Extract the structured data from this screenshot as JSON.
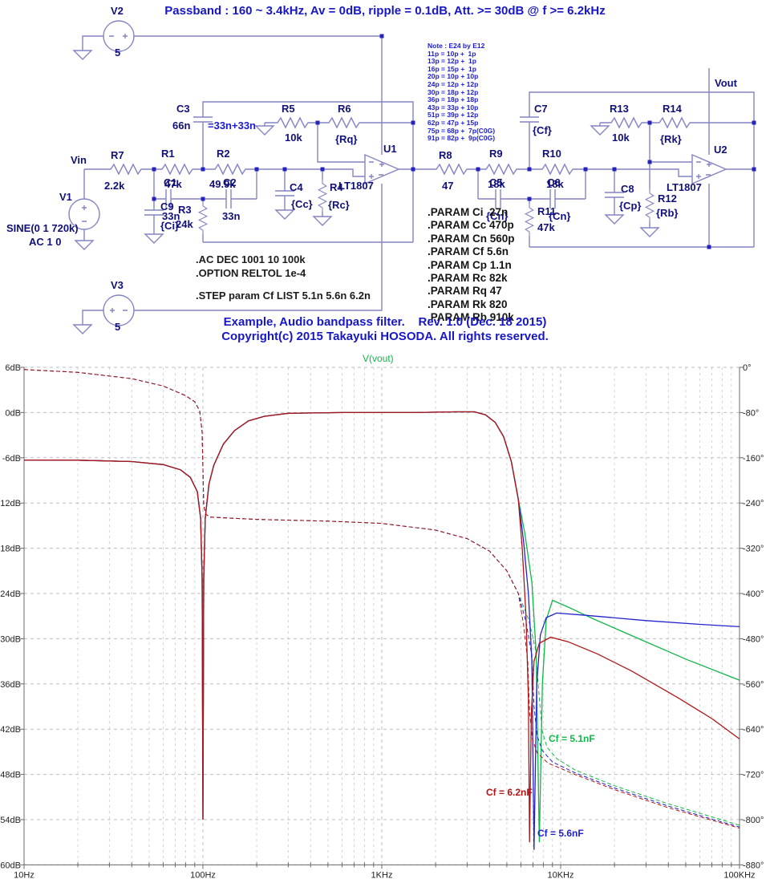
{
  "header": {
    "title": "Passband : 160 ~ 3.4kHz, Av = 0dB, ripple = 0.1dB, Att. >= 30dB @ f >= 6.2kHz"
  },
  "note": {
    "lines": [
      "Note : E24 by E12",
      "11p = 10p +  1p",
      "13p = 12p +  1p",
      "16p = 15p +  1p",
      "20p = 10p + 10p",
      "24p = 12p + 12p",
      "30p = 18p + 12p",
      "36p = 18p + 18p",
      "43p = 33p + 10p",
      "51p = 39p + 12p",
      "62p = 47p + 15p",
      "75p = 68p +  7p(C0G)",
      "91p = 82p +  9p(C0G)"
    ]
  },
  "nets": {
    "vin": "Vin",
    "vout": "Vout"
  },
  "sources": {
    "v1": {
      "name": "V1",
      "value_line1": "SINE(0 1 720k)",
      "value_line2": "AC 1 0"
    },
    "v2": {
      "name": "V2",
      "value": "5"
    },
    "v3": {
      "name": "V3",
      "value": "5"
    }
  },
  "components": {
    "r1": {
      "name": "R1",
      "value": "47k"
    },
    "r2": {
      "name": "R2",
      "value": "49.9k"
    },
    "r3": {
      "name": "R3",
      "value": "24k"
    },
    "r4": {
      "name": "R4",
      "value": "{Rc}"
    },
    "r5": {
      "name": "R5",
      "value": "10k"
    },
    "r6": {
      "name": "R6",
      "value": "{Rq}"
    },
    "r7": {
      "name": "R7",
      "value": "2.2k"
    },
    "r8": {
      "name": "R8",
      "value": "47"
    },
    "r9": {
      "name": "R9",
      "value": "18k"
    },
    "r10": {
      "name": "R10",
      "value": "18k"
    },
    "r11": {
      "name": "R11",
      "value": "47k"
    },
    "r12": {
      "name": "R12",
      "value": "{Rb}"
    },
    "r13": {
      "name": "R13",
      "value": "10k"
    },
    "r14": {
      "name": "R14",
      "value": "{Rk}"
    },
    "c1": {
      "name": "C1",
      "value": "33n"
    },
    "c2": {
      "name": "C2",
      "value": "33n"
    },
    "c3": {
      "name": "C3",
      "value": "66n",
      "annotation": "=33n+33n"
    },
    "c4": {
      "name": "C4",
      "value": "{Cc}"
    },
    "c5": {
      "name": "C5",
      "value": "{Cn}"
    },
    "c6": {
      "name": "C6",
      "value": "{Cn}"
    },
    "c7": {
      "name": "C7",
      "value": "{Cf}"
    },
    "c8": {
      "name": "C8",
      "value": "{Cp}"
    },
    "c9": {
      "name": "C9",
      "value": "{Ci}"
    },
    "u1": {
      "name": "U1",
      "value": "LT1807"
    },
    "u2": {
      "name": "U2",
      "value": "LT1807"
    }
  },
  "directives": {
    "ac": ".AC DEC 1001 10 100k",
    "option": ".OPTION RELTOL 1e-4",
    "step": ".STEP param Cf LIST 5.1n 5.6n 6.2n",
    "params": [
      ".PARAM Ci  27n",
      ".PARAM Cc 470p",
      ".PARAM Cn 560p",
      ".PARAM Cf 5.6n",
      ".PARAM Cp 1.1n",
      ".PARAM Rc 82k",
      ".PARAM Rq 47",
      ".PARAM Rk 820",
      ".PARAM Rb 910k"
    ]
  },
  "footer": {
    "line1": "Example, Audio bandpass filter.    Rev. 1.0 (Dec. 18 2015)",
    "line2": "Copyright(c) 2015 Takayuki HOSODA. All rights reserved."
  },
  "chart_data": {
    "type": "line",
    "trace_label": "V(vout)",
    "x_axis": {
      "scale": "log",
      "min_hz": 10,
      "max_hz": 100000,
      "tick_labels": [
        "10Hz",
        "100Hz",
        "1KHz",
        "10KHz",
        "100KHz"
      ]
    },
    "y_left": {
      "unit": "dB",
      "max": 6,
      "min": -60,
      "step": -6,
      "labels": [
        "6dB",
        "0dB",
        "-6dB",
        "-12dB",
        "-18dB",
        "-24dB",
        "-30dB",
        "-36dB",
        "-42dB",
        "-48dB",
        "-54dB",
        "-60dB"
      ]
    },
    "y_right": {
      "unit": "deg",
      "max": 0,
      "min": -880,
      "step": -80,
      "labels": [
        "0°",
        "-80°",
        "-160°",
        "-240°",
        "-320°",
        "-400°",
        "-480°",
        "-560°",
        "-640°",
        "-720°",
        "-800°",
        "-880°"
      ]
    },
    "grid": true,
    "series": [
      {
        "name": "Cf = 5.1nF",
        "color_hex": "#0fb648",
        "magnitude_db": [
          [
            10,
            -6.3
          ],
          [
            20,
            -6.32
          ],
          [
            40,
            -6.5
          ],
          [
            60,
            -6.9
          ],
          [
            75,
            -7.6
          ],
          [
            85,
            -8.6
          ],
          [
            93,
            -10.5
          ],
          [
            97,
            -14
          ],
          [
            99,
            -22
          ],
          [
            100,
            -54
          ],
          [
            101,
            -22
          ],
          [
            103,
            -14
          ],
          [
            108,
            -9.5
          ],
          [
            115,
            -7
          ],
          [
            130,
            -4.2
          ],
          [
            150,
            -2.4
          ],
          [
            180,
            -1.1
          ],
          [
            220,
            -0.5
          ],
          [
            300,
            -0.1
          ],
          [
            600,
            0
          ],
          [
            1500,
            0
          ],
          [
            2600,
            0.1
          ],
          [
            3300,
            0.1
          ],
          [
            3800,
            -0.3
          ],
          [
            4300,
            -1.3
          ],
          [
            4800,
            -3.2
          ],
          [
            5300,
            -6.5
          ],
          [
            5800,
            -11.5
          ],
          [
            6300,
            -16
          ],
          [
            6900,
            -22.5
          ],
          [
            7300,
            -32
          ],
          [
            7600,
            -57
          ],
          [
            7900,
            -36
          ],
          [
            8300,
            -27.5
          ],
          [
            9000,
            -24.9
          ],
          [
            11000,
            -25.8
          ],
          [
            15000,
            -27.3
          ],
          [
            25000,
            -29.6
          ],
          [
            50000,
            -32.7
          ],
          [
            100000,
            -35.5
          ]
        ],
        "phase_deg": [
          [
            10,
            -4
          ],
          [
            20,
            -9
          ],
          [
            40,
            -20
          ],
          [
            60,
            -33
          ],
          [
            80,
            -50
          ],
          [
            90,
            -61
          ],
          [
            96,
            -77
          ],
          [
            99,
            -115
          ],
          [
            100,
            -180
          ],
          [
            101,
            -245
          ],
          [
            104,
            -260
          ],
          [
            110,
            -265
          ],
          [
            200,
            -269
          ],
          [
            500,
            -272
          ],
          [
            1000,
            -276
          ],
          [
            2000,
            -288
          ],
          [
            3000,
            -303
          ],
          [
            4000,
            -325
          ],
          [
            5000,
            -360
          ],
          [
            5800,
            -400
          ],
          [
            6600,
            -445
          ],
          [
            7200,
            -495
          ],
          [
            7600,
            -585
          ],
          [
            7900,
            -645
          ],
          [
            8400,
            -672
          ],
          [
            9500,
            -692
          ],
          [
            12000,
            -712
          ],
          [
            20000,
            -740
          ],
          [
            40000,
            -772
          ],
          [
            70000,
            -795
          ],
          [
            100000,
            -810
          ]
        ]
      },
      {
        "name": "Cf = 5.6nF",
        "color_hex": "#2222cc",
        "magnitude_db": [
          [
            10,
            -6.3
          ],
          [
            20,
            -6.32
          ],
          [
            40,
            -6.5
          ],
          [
            60,
            -6.9
          ],
          [
            75,
            -7.6
          ],
          [
            85,
            -8.6
          ],
          [
            93,
            -10.5
          ],
          [
            97,
            -14
          ],
          [
            99,
            -22
          ],
          [
            100,
            -54
          ],
          [
            101,
            -22
          ],
          [
            103,
            -14
          ],
          [
            108,
            -9.5
          ],
          [
            115,
            -7
          ],
          [
            130,
            -4.2
          ],
          [
            150,
            -2.4
          ],
          [
            180,
            -1.1
          ],
          [
            220,
            -0.5
          ],
          [
            300,
            -0.1
          ],
          [
            600,
            0
          ],
          [
            1500,
            0
          ],
          [
            2600,
            0.1
          ],
          [
            3300,
            0.1
          ],
          [
            3800,
            -0.3
          ],
          [
            4300,
            -1.3
          ],
          [
            4800,
            -3.2
          ],
          [
            5300,
            -6.5
          ],
          [
            5800,
            -11.5
          ],
          [
            6200,
            -17
          ],
          [
            6600,
            -24
          ],
          [
            6900,
            -33
          ],
          [
            7100,
            -58
          ],
          [
            7350,
            -36
          ],
          [
            7700,
            -29.5
          ],
          [
            8300,
            -27.2
          ],
          [
            9500,
            -26.6
          ],
          [
            14000,
            -26.9
          ],
          [
            30000,
            -27.6
          ],
          [
            60000,
            -28.1
          ],
          [
            100000,
            -28.4
          ]
        ],
        "phase_deg": [
          [
            10,
            -4
          ],
          [
            20,
            -9
          ],
          [
            40,
            -20
          ],
          [
            60,
            -33
          ],
          [
            80,
            -50
          ],
          [
            90,
            -61
          ],
          [
            96,
            -77
          ],
          [
            99,
            -115
          ],
          [
            100,
            -180
          ],
          [
            101,
            -245
          ],
          [
            104,
            -260
          ],
          [
            110,
            -265
          ],
          [
            200,
            -269
          ],
          [
            500,
            -272
          ],
          [
            1000,
            -276
          ],
          [
            2000,
            -288
          ],
          [
            3000,
            -303
          ],
          [
            4000,
            -325
          ],
          [
            5000,
            -360
          ],
          [
            5800,
            -400
          ],
          [
            6400,
            -450
          ],
          [
            6900,
            -510
          ],
          [
            7100,
            -600
          ],
          [
            7400,
            -652
          ],
          [
            7900,
            -678
          ],
          [
            9000,
            -698
          ],
          [
            12000,
            -717
          ],
          [
            20000,
            -744
          ],
          [
            40000,
            -776
          ],
          [
            70000,
            -799
          ],
          [
            100000,
            -813
          ]
        ]
      },
      {
        "name": "Cf = 6.2nF",
        "color_hex": "#b01515",
        "magnitude_db": [
          [
            10,
            -6.3
          ],
          [
            20,
            -6.32
          ],
          [
            40,
            -6.5
          ],
          [
            60,
            -6.9
          ],
          [
            75,
            -7.6
          ],
          [
            85,
            -8.6
          ],
          [
            93,
            -10.5
          ],
          [
            97,
            -14
          ],
          [
            99,
            -22
          ],
          [
            100,
            -54
          ],
          [
            101,
            -22
          ],
          [
            103,
            -14
          ],
          [
            108,
            -9.5
          ],
          [
            115,
            -7
          ],
          [
            130,
            -4.2
          ],
          [
            150,
            -2.4
          ],
          [
            180,
            -1.1
          ],
          [
            220,
            -0.5
          ],
          [
            300,
            -0.1
          ],
          [
            600,
            0
          ],
          [
            1500,
            0
          ],
          [
            2600,
            0.1
          ],
          [
            3300,
            0.1
          ],
          [
            3800,
            -0.3
          ],
          [
            4300,
            -1.3
          ],
          [
            4800,
            -3.2
          ],
          [
            5300,
            -6.5
          ],
          [
            5800,
            -11.5
          ],
          [
            6100,
            -18
          ],
          [
            6400,
            -27
          ],
          [
            6600,
            -38
          ],
          [
            6700,
            -57
          ],
          [
            6850,
            -40
          ],
          [
            7100,
            -33
          ],
          [
            7600,
            -30.6
          ],
          [
            8800,
            -29.8
          ],
          [
            11000,
            -30.4
          ],
          [
            16000,
            -32
          ],
          [
            25000,
            -34.3
          ],
          [
            45000,
            -37.8
          ],
          [
            70000,
            -40.6
          ],
          [
            100000,
            -43.3
          ]
        ],
        "phase_deg": [
          [
            10,
            -4
          ],
          [
            20,
            -9
          ],
          [
            40,
            -20
          ],
          [
            60,
            -33
          ],
          [
            80,
            -50
          ],
          [
            90,
            -61
          ],
          [
            96,
            -77
          ],
          [
            99,
            -115
          ],
          [
            100,
            -180
          ],
          [
            101,
            -245
          ],
          [
            104,
            -260
          ],
          [
            110,
            -265
          ],
          [
            200,
            -269
          ],
          [
            500,
            -272
          ],
          [
            1000,
            -276
          ],
          [
            2000,
            -288
          ],
          [
            3000,
            -303
          ],
          [
            4000,
            -325
          ],
          [
            5000,
            -360
          ],
          [
            5800,
            -400
          ],
          [
            6200,
            -455
          ],
          [
            6550,
            -520
          ],
          [
            6700,
            -610
          ],
          [
            6950,
            -658
          ],
          [
            7400,
            -682
          ],
          [
            8500,
            -700
          ],
          [
            12000,
            -720
          ],
          [
            20000,
            -747
          ],
          [
            40000,
            -779
          ],
          [
            70000,
            -801
          ],
          [
            100000,
            -815
          ]
        ]
      }
    ]
  }
}
